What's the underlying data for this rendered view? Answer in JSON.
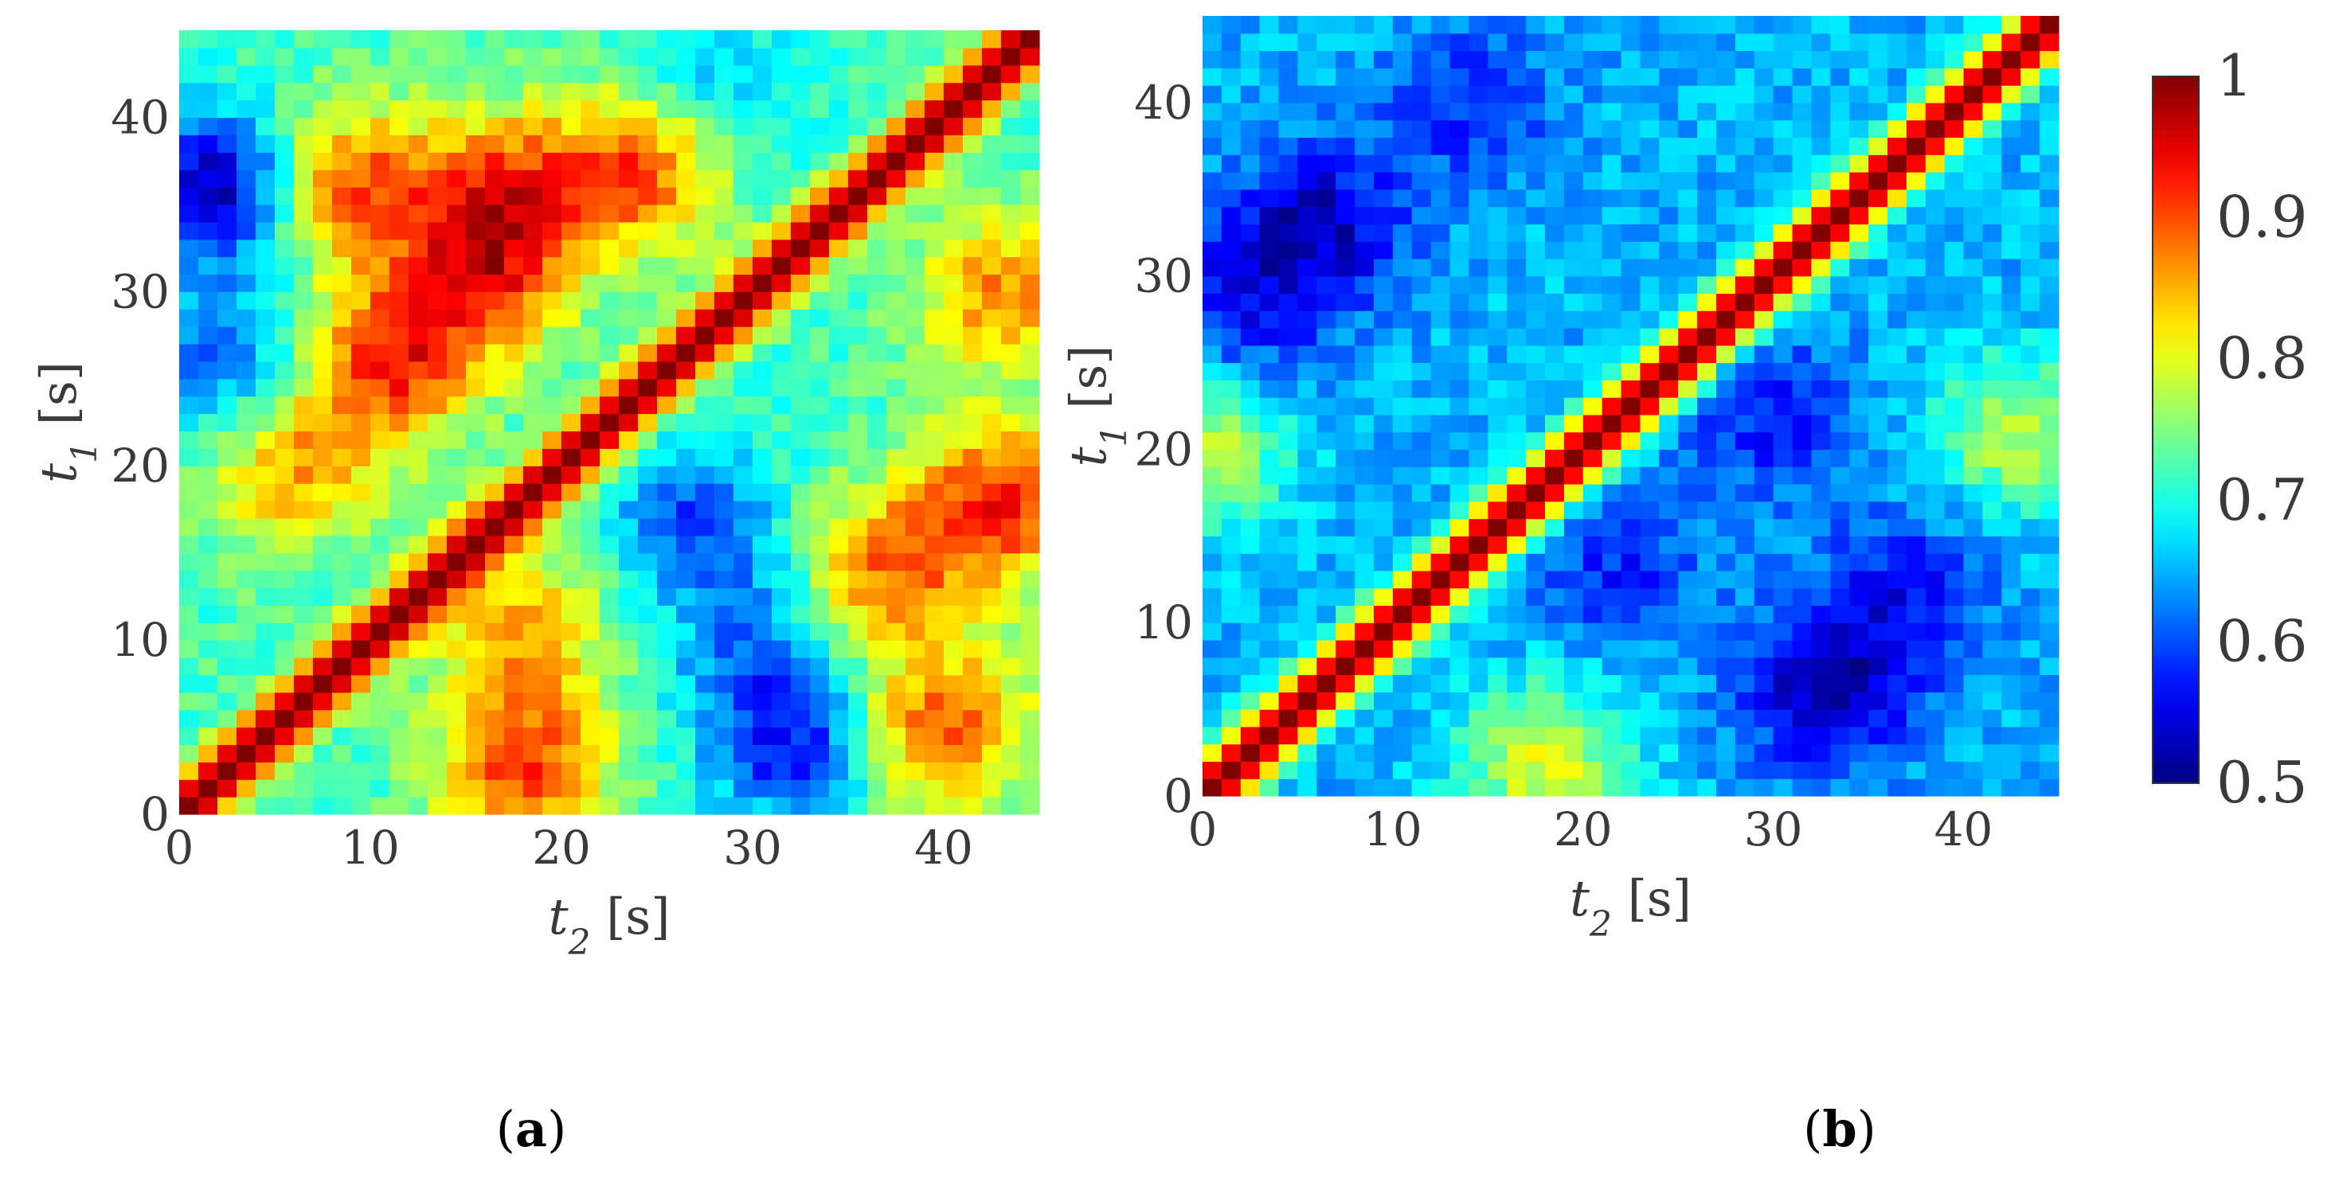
{
  "chart_data": [
    {
      "type": "heatmap",
      "panel_label": "(a)",
      "panel_letter": "a",
      "xlabel": "t2 [s]",
      "ylabel": "t1 [s]",
      "xlim": [
        0,
        45
      ],
      "ylim": [
        0,
        45
      ],
      "x_ticks": [
        "0",
        "10",
        "20",
        "30",
        "40"
      ],
      "y_ticks": [
        "0",
        "10",
        "20",
        "30",
        "40"
      ],
      "grid_size": 45,
      "diagonal_value": 1.0,
      "background_value": 0.72,
      "blobs": [
        {
          "t2": 18,
          "t1": 3,
          "value": 0.91
        },
        {
          "t2": 11,
          "t1": 26,
          "value": 0.92
        },
        {
          "t2": 16,
          "t1": 31,
          "value": 0.9
        },
        {
          "t2": 6,
          "t1": 20,
          "value": 0.86
        },
        {
          "t2": 9,
          "t1": 36,
          "value": 0.9
        },
        {
          "t2": 17,
          "t1": 36,
          "value": 0.88
        },
        {
          "t2": 24,
          "t1": 37,
          "value": 0.9
        },
        {
          "t2": 43,
          "t1": 18,
          "value": 0.92
        },
        {
          "t2": 37,
          "t1": 14,
          "value": 0.88
        },
        {
          "t2": 43,
          "t1": 30,
          "value": 0.87
        },
        {
          "t2": 40,
          "t1": 5,
          "value": 0.9
        },
        {
          "t2": 18,
          "t1": 11,
          "value": 0.85
        },
        {
          "t2": 2,
          "t1": 36,
          "value": 0.52
        },
        {
          "t2": 2,
          "t1": 26,
          "value": 0.6
        },
        {
          "t2": 32,
          "t1": 4,
          "value": 0.57
        },
        {
          "t2": 27,
          "t1": 17,
          "value": 0.6
        },
        {
          "t2": 30,
          "t1": 10,
          "value": 0.63
        },
        {
          "t2": 28,
          "t1": 42,
          "value": 0.65
        }
      ]
    },
    {
      "type": "heatmap",
      "panel_label": "(b)",
      "panel_letter": "b",
      "xlabel": "t2 [s]",
      "ylabel": "t1 [s]",
      "xlim": [
        0,
        45
      ],
      "ylim": [
        0,
        45
      ],
      "x_ticks": [
        "0",
        "10",
        "20",
        "30",
        "40"
      ],
      "y_ticks": [
        "0",
        "10",
        "20",
        "30",
        "40"
      ],
      "grid_size": 45,
      "diagonal_value": 1.0,
      "background_value": 0.65,
      "blobs": [
        {
          "t2": 6,
          "t1": 33,
          "value": 0.53
        },
        {
          "t2": 2,
          "t1": 28,
          "value": 0.57
        },
        {
          "t2": 33,
          "t1": 6,
          "value": 0.52
        },
        {
          "t2": 37,
          "t1": 12,
          "value": 0.57
        },
        {
          "t2": 22,
          "t1": 13,
          "value": 0.58
        },
        {
          "t2": 14,
          "t1": 40,
          "value": 0.58
        },
        {
          "t2": 30,
          "t1": 22,
          "value": 0.57
        },
        {
          "t2": 18,
          "t1": 2,
          "value": 0.8
        },
        {
          "t2": 43,
          "t1": 21,
          "value": 0.78
        },
        {
          "t2": 0,
          "t1": 20,
          "value": 0.78
        }
      ]
    }
  ],
  "colorbar": {
    "colormap": "jet",
    "min": 0.5,
    "max": 1,
    "tick_labels": [
      "1",
      "0.9",
      "0.8",
      "0.7",
      "0.6",
      "0.5"
    ]
  }
}
